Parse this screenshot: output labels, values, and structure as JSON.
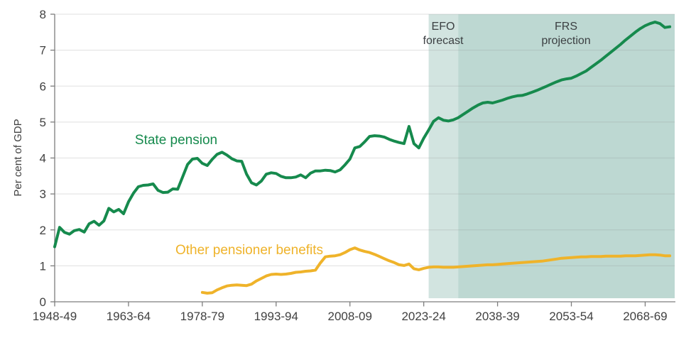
{
  "chart_data": {
    "type": "line",
    "title": "",
    "ylabel": "Per cent of GDP",
    "xlabel": "",
    "ylim": [
      0,
      8
    ],
    "xlim": [
      1948,
      2074
    ],
    "grid": "horizontal",
    "y_ticks": [
      0,
      1,
      2,
      3,
      4,
      5,
      6,
      7,
      8
    ],
    "x_ticks": [
      1948,
      1963,
      1978,
      1993,
      2008,
      2023,
      2038,
      2053,
      2068
    ],
    "x_tick_labels": [
      "1948-49",
      "1963-64",
      "1978-79",
      "1993-94",
      "2008-09",
      "2023-24",
      "2038-39",
      "2053-54",
      "2068-69"
    ],
    "regions": [
      {
        "label": "EFO forecast",
        "from": 2024,
        "to": 2030,
        "color": "#d2e4e0"
      },
      {
        "label": "FRS projection",
        "from": 2030,
        "to": 2074,
        "color": "#bdd8d2"
      }
    ],
    "series": [
      {
        "name": "State pension",
        "color": "#168a4d",
        "x_start": 1948,
        "values": [
          1.53,
          2.07,
          1.93,
          1.88,
          1.98,
          2.01,
          1.94,
          2.17,
          2.24,
          2.13,
          2.25,
          2.6,
          2.5,
          2.57,
          2.45,
          2.78,
          3.02,
          3.2,
          3.24,
          3.25,
          3.28,
          3.1,
          3.04,
          3.05,
          3.14,
          3.13,
          3.47,
          3.82,
          3.97,
          3.99,
          3.85,
          3.79,
          3.96,
          4.1,
          4.16,
          4.08,
          3.98,
          3.92,
          3.91,
          3.55,
          3.31,
          3.25,
          3.36,
          3.55,
          3.59,
          3.57,
          3.49,
          3.45,
          3.45,
          3.47,
          3.53,
          3.45,
          3.58,
          3.64,
          3.64,
          3.66,
          3.65,
          3.61,
          3.67,
          3.81,
          3.97,
          4.28,
          4.32,
          4.45,
          4.6,
          4.62,
          4.61,
          4.58,
          4.52,
          4.47,
          4.43,
          4.4,
          4.88,
          4.4,
          4.28,
          4.55,
          4.78,
          5.02,
          5.12,
          5.05,
          5.03,
          5.06,
          5.12,
          5.21,
          5.3,
          5.39,
          5.47,
          5.53,
          5.55,
          5.53,
          5.57,
          5.61,
          5.66,
          5.7,
          5.73,
          5.74,
          5.78,
          5.83,
          5.88,
          5.94,
          6.0,
          6.06,
          6.12,
          6.17,
          6.2,
          6.22,
          6.28,
          6.35,
          6.42,
          6.52,
          6.62,
          6.72,
          6.83,
          6.94,
          7.05,
          7.16,
          7.28,
          7.39,
          7.5,
          7.6,
          7.68,
          7.74,
          7.78,
          7.74,
          7.63,
          7.65
        ]
      },
      {
        "name": "Other pensioner benefits",
        "color": "#efb32a",
        "x_start": 1978,
        "values": [
          0.26,
          0.24,
          0.25,
          0.33,
          0.39,
          0.44,
          0.46,
          0.47,
          0.46,
          0.45,
          0.49,
          0.58,
          0.65,
          0.72,
          0.76,
          0.77,
          0.76,
          0.77,
          0.79,
          0.82,
          0.83,
          0.85,
          0.86,
          0.88,
          1.08,
          1.25,
          1.27,
          1.28,
          1.31,
          1.37,
          1.45,
          1.5,
          1.44,
          1.4,
          1.37,
          1.32,
          1.26,
          1.2,
          1.14,
          1.09,
          1.03,
          1.01,
          1.05,
          0.92,
          0.89,
          0.93,
          0.96,
          0.97,
          0.97,
          0.96,
          0.96,
          0.96,
          0.97,
          0.98,
          0.99,
          1.0,
          1.01,
          1.02,
          1.03,
          1.03,
          1.04,
          1.05,
          1.06,
          1.07,
          1.08,
          1.09,
          1.1,
          1.11,
          1.12,
          1.13,
          1.15,
          1.17,
          1.19,
          1.21,
          1.22,
          1.23,
          1.24,
          1.25,
          1.25,
          1.26,
          1.26,
          1.26,
          1.27,
          1.27,
          1.27,
          1.27,
          1.28,
          1.28,
          1.28,
          1.29,
          1.3,
          1.31,
          1.31,
          1.3,
          1.28,
          1.28
        ]
      }
    ]
  },
  "style": {
    "grid_color": "#8b8b8b",
    "axis_color": "#7d7d7d",
    "tick_label_color": "#414141",
    "background": "#ffffff"
  }
}
